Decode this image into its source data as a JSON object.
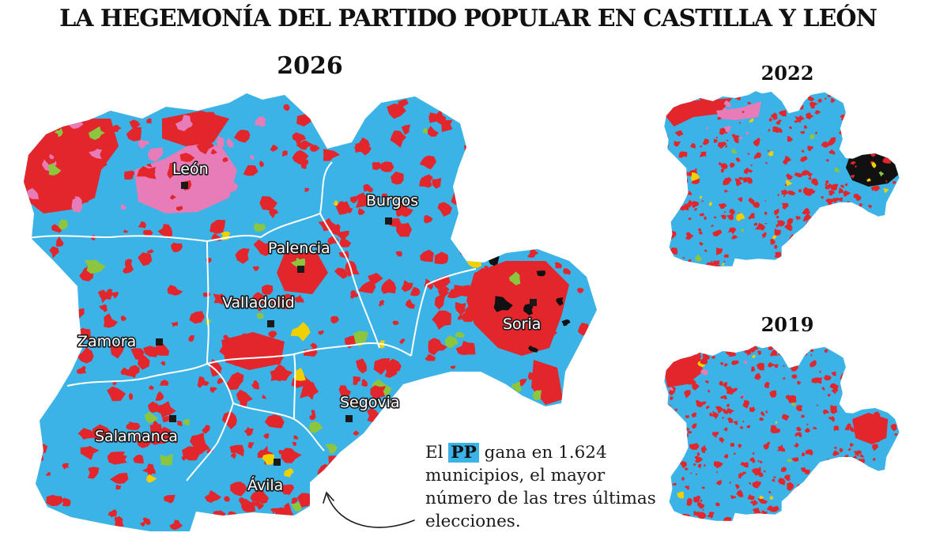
{
  "title": "LA HEGEMONÍA DEL PARTIDO POPULAR EN CASTILLA Y LEÓN",
  "maps": {
    "main": {
      "year": "2026"
    },
    "small_top": {
      "year": "2022"
    },
    "small_bottom": {
      "year": "2019"
    }
  },
  "cities": {
    "leon": "León",
    "burgos": "Burgos",
    "palencia": "Palencia",
    "valladolid": "Valladolid",
    "zamora": "Zamora",
    "soria": "Soria",
    "segovia": "Segovia",
    "salamanca": "Salamanca",
    "avila": "Ávila"
  },
  "annotation": {
    "prefix": "El ",
    "party": "PP",
    "text": " gana en 1.624 municipios, el mayor número de las tres últimas elecciones."
  },
  "colors": {
    "pp": "#3bb3e6",
    "psoe": "#e3262c",
    "upl": "#e77cb8",
    "soria_ya": "#111111",
    "vox": "#8cc63f",
    "other": "#f0d000",
    "border": "#ffffff"
  }
}
